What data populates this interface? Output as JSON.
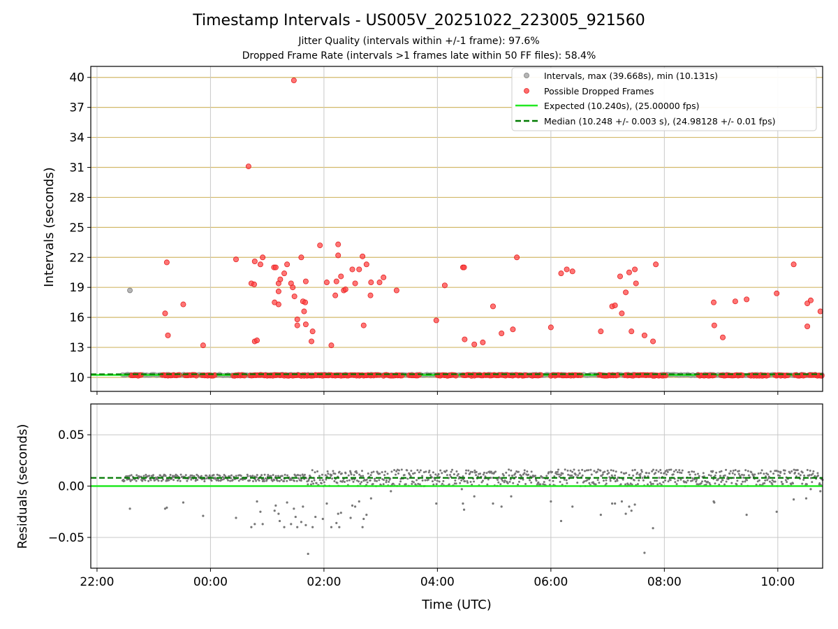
{
  "chart_data": {
    "type": "scatter",
    "title": "Timestamp Intervals - US005V_20251022_223005_921560",
    "subtitle_lines": [
      "Jitter Quality (intervals within +/-1 frame): 97.6%",
      "Dropped Frame Rate (intervals >1 frames late within 50 FF files): 58.4%"
    ],
    "xlabel": "Time (UTC)",
    "x_units": "hours since 22:00 UTC",
    "x_ticks": [
      {
        "value": 0,
        "label": "22:00"
      },
      {
        "value": 2,
        "label": "00:00"
      },
      {
        "value": 4,
        "label": "02:00"
      },
      {
        "value": 6,
        "label": "04:00"
      },
      {
        "value": 8,
        "label": "06:00"
      },
      {
        "value": 10,
        "label": "08:00"
      },
      {
        "value": 12,
        "label": "10:00"
      }
    ],
    "xlim": [
      -0.11,
      12.79
    ],
    "top_panel": {
      "ylabel": "Intervals (seconds)",
      "ylim": [
        8.6,
        41.1
      ],
      "y_ticks": [
        10,
        13,
        16,
        19,
        22,
        25,
        28,
        31,
        34,
        37,
        40
      ],
      "grid_color_y": "#d2b96a",
      "legend": {
        "position": "top-right",
        "entries": [
          {
            "label": "Intervals, max (39.668s), min (10.131s)",
            "kind": "marker",
            "color": "#9e9e9e"
          },
          {
            "label": "Possible Dropped Frames",
            "kind": "marker",
            "color": "#ff3b3b"
          },
          {
            "label": "Expected (10.240s), (25.00000 fps)",
            "kind": "solid",
            "color": "#22e822"
          },
          {
            "label": "Median (10.248 +/- 0.003 s), (24.98128 +/- 0.01 fps)",
            "kind": "dashed",
            "color": "#007a00"
          }
        ]
      },
      "expected_interval": 10.24,
      "median_interval": 10.248,
      "normal_points": [
        [
          0.58,
          18.7
        ]
      ],
      "dropped_frames": [
        [
          1.23,
          21.5
        ],
        [
          1.2,
          16.4
        ],
        [
          1.25,
          14.2
        ],
        [
          1.52,
          17.3
        ],
        [
          1.87,
          13.2
        ],
        [
          2.45,
          21.8
        ],
        [
          2.67,
          31.1
        ],
        [
          2.72,
          19.4
        ],
        [
          2.77,
          19.3
        ],
        [
          2.78,
          13.6
        ],
        [
          2.82,
          13.7
        ],
        [
          2.78,
          21.6
        ],
        [
          2.88,
          21.3
        ],
        [
          2.92,
          22.0
        ],
        [
          3.12,
          21.0
        ],
        [
          3.15,
          21.0
        ],
        [
          3.13,
          17.5
        ],
        [
          3.2,
          17.3
        ],
        [
          3.2,
          19.4
        ],
        [
          3.2,
          18.6
        ],
        [
          3.23,
          19.8
        ],
        [
          3.3,
          20.4
        ],
        [
          3.35,
          21.3
        ],
        [
          3.42,
          19.4
        ],
        [
          3.45,
          19.0
        ],
        [
          3.48,
          18.1
        ],
        [
          3.53,
          15.8
        ],
        [
          3.53,
          15.2
        ],
        [
          3.6,
          22.0
        ],
        [
          3.63,
          17.6
        ],
        [
          3.67,
          17.5
        ],
        [
          3.68,
          19.6
        ],
        [
          3.68,
          15.3
        ],
        [
          3.65,
          16.6
        ],
        [
          3.47,
          39.7
        ],
        [
          3.8,
          14.6
        ],
        [
          3.78,
          13.6
        ],
        [
          3.93,
          23.2
        ],
        [
          4.05,
          19.5
        ],
        [
          4.13,
          13.2
        ],
        [
          4.2,
          18.2
        ],
        [
          4.22,
          19.6
        ],
        [
          4.25,
          22.2
        ],
        [
          4.25,
          23.3
        ],
        [
          4.3,
          20.1
        ],
        [
          4.35,
          18.7
        ],
        [
          4.38,
          18.8
        ],
        [
          4.5,
          20.8
        ],
        [
          4.55,
          19.4
        ],
        [
          4.62,
          20.8
        ],
        [
          4.68,
          22.1
        ],
        [
          4.7,
          15.2
        ],
        [
          4.75,
          21.3
        ],
        [
          4.82,
          18.2
        ],
        [
          4.83,
          19.5
        ],
        [
          4.98,
          19.5
        ],
        [
          5.05,
          20.0
        ],
        [
          5.28,
          18.7
        ],
        [
          5.98,
          15.7
        ],
        [
          6.13,
          19.2
        ],
        [
          6.45,
          21.0
        ],
        [
          6.47,
          21.0
        ],
        [
          6.48,
          13.8
        ],
        [
          6.65,
          13.3
        ],
        [
          6.8,
          13.5
        ],
        [
          6.98,
          17.1
        ],
        [
          7.13,
          14.4
        ],
        [
          7.33,
          14.8
        ],
        [
          7.4,
          22.0
        ],
        [
          8.0,
          15.0
        ],
        [
          8.18,
          20.4
        ],
        [
          8.28,
          20.8
        ],
        [
          8.38,
          20.6
        ],
        [
          8.88,
          14.6
        ],
        [
          9.08,
          17.1
        ],
        [
          9.13,
          17.2
        ],
        [
          9.22,
          20.1
        ],
        [
          9.25,
          16.4
        ],
        [
          9.32,
          18.5
        ],
        [
          9.38,
          20.5
        ],
        [
          9.42,
          14.6
        ],
        [
          9.48,
          20.8
        ],
        [
          9.5,
          19.4
        ],
        [
          9.65,
          14.2
        ],
        [
          9.8,
          13.6
        ],
        [
          9.85,
          21.3
        ],
        [
          10.87,
          17.5
        ],
        [
          10.88,
          15.2
        ],
        [
          11.03,
          14.0
        ],
        [
          11.25,
          17.6
        ],
        [
          11.45,
          17.8
        ],
        [
          11.98,
          18.4
        ],
        [
          12.28,
          21.3
        ],
        [
          12.52,
          15.1
        ],
        [
          12.52,
          17.4
        ],
        [
          12.58,
          17.7
        ],
        [
          12.75,
          16.6
        ]
      ],
      "dropped_baseline_segments": [
        [
          0.6,
          0.8
        ],
        [
          1.15,
          1.45
        ],
        [
          1.55,
          1.75
        ],
        [
          1.85,
          2.08
        ],
        [
          2.4,
          2.6
        ],
        [
          2.7,
          5.0
        ],
        [
          5.05,
          5.4
        ],
        [
          5.5,
          5.7
        ],
        [
          6.0,
          6.35
        ],
        [
          6.45,
          7.6
        ],
        [
          7.65,
          7.85
        ],
        [
          8.0,
          8.55
        ],
        [
          8.85,
          9.2
        ],
        [
          9.3,
          10.05
        ],
        [
          10.6,
          10.9
        ],
        [
          11.0,
          11.4
        ],
        [
          11.5,
          11.85
        ],
        [
          11.95,
          12.2
        ],
        [
          12.3,
          12.5
        ],
        [
          12.55,
          12.79
        ]
      ]
    },
    "bottom_panel": {
      "ylabel": "Residuals (seconds)",
      "ylim": [
        -0.08,
        0.08
      ],
      "y_ticks": [
        {
          "value": 0.05,
          "label": "0.05"
        },
        {
          "value": 0.0,
          "label": "0.00"
        },
        {
          "value": -0.05,
          "label": "−0.05"
        }
      ],
      "expected_residual": 0.0,
      "median_residual": 0.008,
      "band": {
        "x_start": 0.45,
        "x_end": 12.79,
        "center": 0.008,
        "spread": 0.006
      },
      "outliers": [
        [
          0.58,
          -0.022
        ],
        [
          1.2,
          -0.022
        ],
        [
          1.23,
          -0.021
        ],
        [
          1.52,
          -0.016
        ],
        [
          1.87,
          -0.029
        ],
        [
          2.45,
          -0.031
        ],
        [
          2.72,
          -0.04
        ],
        [
          2.78,
          -0.037
        ],
        [
          2.82,
          -0.015
        ],
        [
          2.92,
          -0.037
        ],
        [
          2.88,
          -0.025
        ],
        [
          3.15,
          -0.019
        ],
        [
          3.2,
          -0.027
        ],
        [
          3.13,
          -0.024
        ],
        [
          3.22,
          -0.034
        ],
        [
          3.3,
          -0.04
        ],
        [
          3.35,
          -0.016
        ],
        [
          3.42,
          -0.037
        ],
        [
          3.47,
          -0.022
        ],
        [
          3.5,
          -0.03
        ],
        [
          3.53,
          -0.04
        ],
        [
          3.6,
          -0.035
        ],
        [
          3.63,
          -0.02
        ],
        [
          3.68,
          -0.038
        ],
        [
          3.72,
          -0.066
        ],
        [
          3.8,
          -0.04
        ],
        [
          3.85,
          -0.03
        ],
        [
          3.98,
          -0.032
        ],
        [
          4.05,
          -0.017
        ],
        [
          4.13,
          -0.04
        ],
        [
          4.22,
          -0.036
        ],
        [
          4.25,
          -0.027
        ],
        [
          4.27,
          -0.04
        ],
        [
          4.3,
          -0.026
        ],
        [
          4.47,
          -0.031
        ],
        [
          4.5,
          -0.019
        ],
        [
          4.55,
          -0.02
        ],
        [
          4.62,
          -0.015
        ],
        [
          4.68,
          -0.04
        ],
        [
          4.7,
          -0.032
        ],
        [
          4.75,
          -0.028
        ],
        [
          4.83,
          -0.012
        ],
        [
          5.18,
          -0.005
        ],
        [
          5.98,
          -0.017
        ],
        [
          6.43,
          -0.003
        ],
        [
          6.45,
          -0.017
        ],
        [
          6.47,
          -0.023
        ],
        [
          6.65,
          -0.01
        ],
        [
          6.98,
          -0.017
        ],
        [
          7.13,
          -0.02
        ],
        [
          7.3,
          -0.01
        ],
        [
          8.0,
          -0.015
        ],
        [
          8.18,
          -0.034
        ],
        [
          8.38,
          -0.02
        ],
        [
          8.88,
          -0.028
        ],
        [
          9.08,
          -0.017
        ],
        [
          9.13,
          -0.017
        ],
        [
          9.25,
          -0.015
        ],
        [
          9.32,
          -0.027
        ],
        [
          9.38,
          -0.02
        ],
        [
          9.42,
          -0.024
        ],
        [
          9.48,
          -0.018
        ],
        [
          9.65,
          -0.065
        ],
        [
          9.8,
          -0.041
        ],
        [
          10.87,
          -0.015
        ],
        [
          10.88,
          -0.016
        ],
        [
          11.45,
          -0.028
        ],
        [
          11.98,
          -0.025
        ],
        [
          12.28,
          -0.013
        ],
        [
          12.5,
          -0.012
        ],
        [
          12.58,
          -0.003
        ],
        [
          12.75,
          -0.005
        ]
      ]
    },
    "colors": {
      "normal": "#9e9e9e",
      "dropped": "#ff3b3b",
      "expected": "#22e822",
      "median": "#007a00",
      "residual": "#777777",
      "grid_x": "#c8c8c8"
    }
  }
}
